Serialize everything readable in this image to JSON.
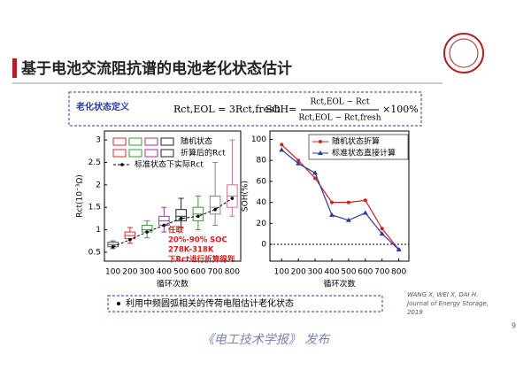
{
  "title": "基于电池交流阻抗谱的电池老化状态估计",
  "definition": {
    "label": "老化状态定义",
    "eq1": "Rct,EOL = 3Rct,fresh",
    "soh": "SOH=",
    "numerator": "Rct,EOL − Rct",
    "denominator": "Rct,EOL − Rct,fresh",
    "tail": "×100%"
  },
  "bullet": "利用中频圆弧相关的传荷电阻估计老化状态",
  "citation": [
    "WANG X, WEI X, DAI H.",
    "Journal of Energy Storage,",
    "2019"
  ],
  "footer": "《电工技术学报》 发布",
  "page_number": "9",
  "chart_data": [
    {
      "type": "box",
      "ylabel": "Rct(10⁻³Ω)",
      "xlabel": "循环次数",
      "categories": [
        "100",
        "200",
        "300",
        "400",
        "500",
        "600",
        "700",
        "800"
      ],
      "ylim": [
        0.3,
        3.2
      ],
      "yticks": [
        0.5,
        1.0,
        1.5,
        2.0,
        2.5,
        3.0
      ],
      "box_legend": [
        "随机状态",
        "折算后的Rct"
      ],
      "colors": [
        "#555555",
        "#d03030",
        "#3a9a3a",
        "#9a3a9a",
        "#222222",
        "#3a9a3a",
        "#888888",
        "#d07090"
      ],
      "boxes": [
        {
          "low": 0.58,
          "q1": 0.62,
          "median": 0.67,
          "q3": 0.72,
          "high": 0.75
        },
        {
          "low": 0.7,
          "q1": 0.8,
          "median": 0.87,
          "q3": 0.95,
          "high": 1.05
        },
        {
          "low": 0.82,
          "q1": 0.95,
          "median": 1.0,
          "q3": 1.1,
          "high": 1.2
        },
        {
          "low": 0.95,
          "q1": 1.1,
          "median": 1.2,
          "q3": 1.3,
          "high": 1.5
        },
        {
          "low": 1.05,
          "q1": 1.2,
          "median": 1.3,
          "q3": 1.45,
          "high": 1.7
        },
        {
          "low": 1.0,
          "q1": 1.2,
          "median": 1.35,
          "q3": 1.5,
          "high": 1.75
        },
        {
          "low": 1.1,
          "q1": 1.35,
          "median": 1.5,
          "q3": 1.75,
          "high": 2.5
        },
        {
          "low": 1.3,
          "q1": 1.5,
          "median": 1.75,
          "q3": 2.0,
          "high": 3.0
        }
      ],
      "points": {
        "name": "标准状态下实际Rct",
        "color": "#000000",
        "values": [
          0.62,
          0.78,
          0.95,
          1.1,
          1.25,
          1.3,
          1.45,
          1.7
        ]
      },
      "annotation": [
        "任取",
        "20%-90% SOC",
        "278K-318K",
        "下Rct进行折算得到"
      ]
    },
    {
      "type": "line",
      "ylabel": "SOH(%)",
      "xlabel": "循环次数",
      "x": [
        100,
        200,
        300,
        400,
        500,
        600,
        700,
        800
      ],
      "xlim": [
        30,
        860
      ],
      "xticks": [
        100,
        200,
        300,
        400,
        500,
        600,
        700,
        800
      ],
      "ylim": [
        -16,
        108
      ],
      "yticks": [
        0,
        20,
        40,
        60,
        80,
        100
      ],
      "series": [
        {
          "name": "随机状态折算",
          "color": "#d02020",
          "marker": "circle",
          "values": [
            95,
            80,
            63,
            40,
            40,
            42,
            15,
            -5
          ]
        },
        {
          "name": "标准状态直接计算",
          "color": "#2a3a9a",
          "marker": "triangle",
          "values": [
            90,
            77,
            68,
            28,
            23,
            30,
            10,
            -5
          ]
        }
      ]
    }
  ]
}
